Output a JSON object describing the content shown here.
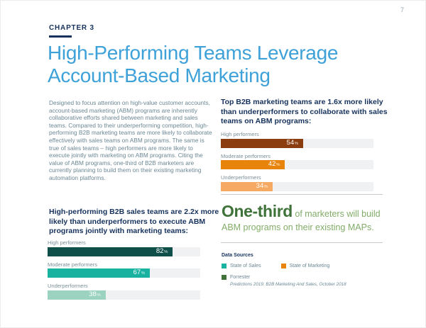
{
  "page": {
    "number": "7",
    "chapter": "CHAPTER 3",
    "title_line1": "High-Performing Teams Leverage",
    "title_line2": "Account-Based Marketing",
    "intro": "Designed to focus attention on high-value customer accounts, account-based marketing (ABM) programs are inherently collaborative efforts shared between marketing and sales teams. Compared to their underperforming competition, high-performing B2B marketing teams are more likely to collaborate effectively with sales teams on ABM programs. The same is true of sales teams – high performers are more likely to execute jointly with marketing on ABM programs. Citing the value of ABM programs, one-third of B2B marketers are currently planning to build them on their existing marketing automation platforms."
  },
  "chart_data": [
    {
      "type": "bar",
      "orientation": "horizontal",
      "title": "Top B2B marketing teams are 1.6x more likely than underperformers to collaborate with sales teams on ABM programs:",
      "categories": [
        "High performers",
        "Moderate performers",
        "Underperformers"
      ],
      "values": [
        54,
        42,
        34
      ],
      "unit": "%",
      "xlim": [
        0,
        100
      ],
      "colors": [
        "#8c3d10",
        "#e8830c",
        "#f5a963"
      ],
      "track_color": "#f0f1f2",
      "source": "State of Marketing"
    },
    {
      "type": "bar",
      "orientation": "horizontal",
      "title": "High-performing B2B sales teams are 2.2x more likely than underperformers to execute ABM programs jointly with marketing teams:",
      "categories": [
        "High performers",
        "Moderate performers",
        "Underperformers"
      ],
      "values": [
        82,
        67,
        38
      ],
      "unit": "%",
      "xlim": [
        0,
        100
      ],
      "colors": [
        "#0f4f4a",
        "#19b2a1",
        "#9bd3c0"
      ],
      "track_color": "#f0f1f2",
      "source": "State of Sales"
    }
  ],
  "callout": {
    "highlight": "One-third",
    "rest_line1": " of marketers will build",
    "line2": "ABM programs on their existing MAPs."
  },
  "data_sources": {
    "heading": "Data Sources",
    "items": [
      {
        "label": "State of Sales",
        "color": "#19b2a1"
      },
      {
        "label": "State of Marketing",
        "color": "#e8830c"
      },
      {
        "label": "Forrester",
        "color": "#3e7239",
        "note": "Predictions 2019: B2B Marketing And Sales, October 2018"
      }
    ]
  }
}
